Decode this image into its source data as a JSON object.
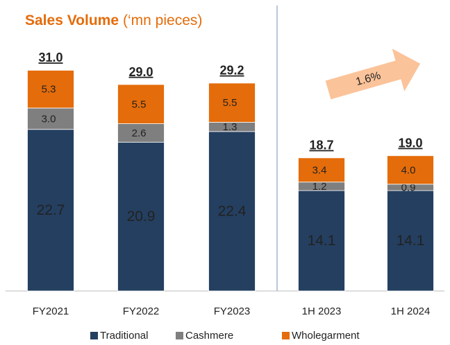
{
  "chart_data": {
    "type": "stacked_bar",
    "title": "Sales Volume",
    "subtitle": "(‘mn pieces)",
    "categories": [
      "FY2021",
      "FY2022",
      "FY2023",
      "1H 2023",
      "1H 2024"
    ],
    "series": [
      {
        "name": "Traditional",
        "color": "#243f60",
        "values": [
          22.7,
          20.9,
          22.4,
          14.1,
          14.1
        ]
      },
      {
        "name": "Cashmere",
        "color": "#7f7f7f",
        "values": [
          3,
          2.6,
          1.3,
          1.2,
          0.9
        ],
        "value_labels": [
          "3.0",
          "2.6",
          "1.3",
          "1.2",
          "0.9"
        ]
      },
      {
        "name": "Wholegarment",
        "color": "#e46c0a",
        "values": [
          5.3,
          5.5,
          5.5,
          3.4,
          4
        ],
        "value_labels": [
          "5.3",
          "5.5",
          "5.5",
          "3.4",
          "4.0"
        ]
      }
    ],
    "totals": [
      31,
      29,
      29.2,
      18.7,
      19
    ],
    "total_labels": [
      "31.0",
      "29.0",
      "29.2",
      "18.7",
      "19.0"
    ],
    "annotation": "1.6%",
    "ylim": [
      0,
      40
    ],
    "legend": "bottom"
  }
}
